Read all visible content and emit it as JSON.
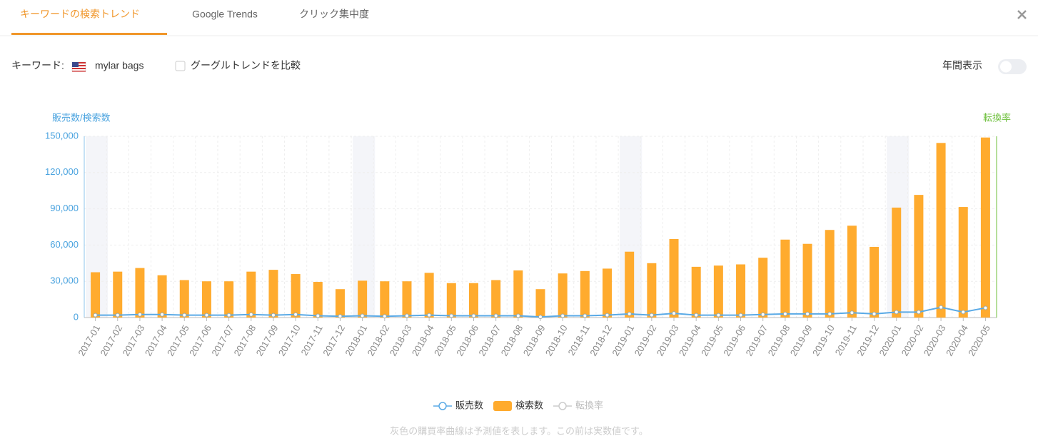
{
  "tabs": [
    "キーワードの検索トレンド",
    "Google Trends",
    "クリック集中度"
  ],
  "keyword_label": "キーワード:",
  "keyword": "mylar bags",
  "compare_label": "グーグルトレンドを比較",
  "annual_label": "年間表示",
  "note": "灰色の購買率曲線は予測値を表します。この前は実数値です。",
  "chart_data": {
    "type": "bar-line",
    "y_label": "販売数/検索数",
    "y2_label": "転換率",
    "categories": [
      "2017-01",
      "2017-02",
      "2017-03",
      "2017-04",
      "2017-05",
      "2017-06",
      "2017-07",
      "2017-08",
      "2017-09",
      "2017-10",
      "2017-11",
      "2017-12",
      "2018-01",
      "2018-02",
      "2018-03",
      "2018-04",
      "2018-05",
      "2018-06",
      "2018-07",
      "2018-08",
      "2018-09",
      "2018-10",
      "2018-11",
      "2018-12",
      "2019-01",
      "2019-02",
      "2019-03",
      "2019-04",
      "2019-05",
      "2019-06",
      "2019-07",
      "2019-08",
      "2019-09",
      "2019-10",
      "2019-11",
      "2019-12",
      "2020-01",
      "2020-02",
      "2020-03",
      "2020-04",
      "2020-05"
    ],
    "series": [
      {
        "name": "販売数",
        "color": "#5aaae6",
        "kind": "line",
        "values": [
          2000,
          2000,
          2500,
          2500,
          2000,
          2000,
          2000,
          2500,
          2000,
          2500,
          1500,
          1000,
          1500,
          1000,
          1500,
          2000,
          1500,
          1500,
          1500,
          1500,
          500,
          1500,
          1500,
          2000,
          3000,
          2000,
          3500,
          2000,
          2000,
          2000,
          2500,
          3000,
          3000,
          3000,
          4000,
          3000,
          4500,
          4500,
          8500,
          4500,
          8000
        ]
      },
      {
        "name": "検索数",
        "color": "#ffab2e",
        "kind": "bar",
        "values": [
          37500,
          38000,
          41000,
          35000,
          31000,
          30000,
          30000,
          38000,
          39500,
          36000,
          29500,
          23500,
          30500,
          30000,
          30000,
          37000,
          28500,
          28500,
          31000,
          39000,
          23500,
          36500,
          38500,
          40500,
          54500,
          45000,
          65000,
          42000,
          43000,
          44000,
          49500,
          64500,
          61000,
          72500,
          76000,
          58500,
          91000,
          101500,
          144500,
          91500,
          149000
        ]
      },
      {
        "name": "転換率",
        "color": "#cccccc",
        "kind": "line",
        "hidden": true
      }
    ],
    "ylim": [
      0,
      150000
    ],
    "yticks": [
      0,
      {
        "value": 30000,
        "label": "30,000"
      },
      {
        "value": 60000,
        "label": "60,000"
      },
      {
        "value": 90000,
        "label": "90,000"
      },
      {
        "value": 120000,
        "label": "120,000"
      },
      {
        "value": 150000,
        "label": "150,000"
      }
    ],
    "grid": true
  }
}
